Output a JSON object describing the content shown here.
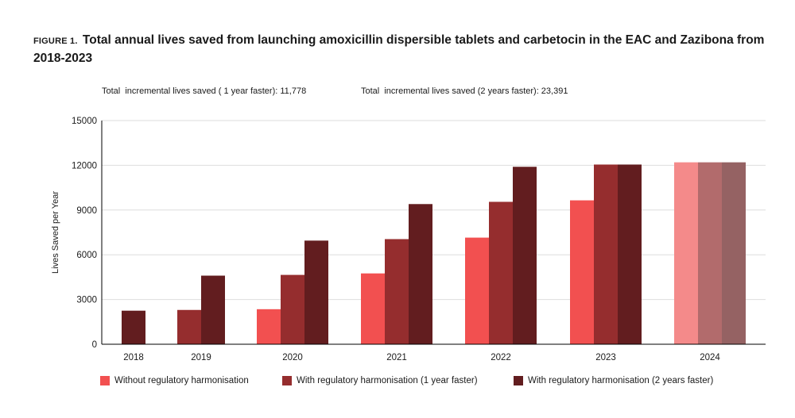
{
  "figure": {
    "prefix": "FIGURE 1.",
    "title": "Total annual lives saved from launching amoxicillin dispersible tablets and carbetocin in the EAC and Zazibona from 2018-2023"
  },
  "notes": {
    "one_year": "Total  incremental lives saved ( 1 year faster): 11,778",
    "two_years": "Total  incremental lives saved (2 years faster): 23,391"
  },
  "colors": {
    "without": "#f25050",
    "one_year": "#952d2e",
    "two_years": "#621d1f",
    "without_faded": "#f48a8a",
    "one_year_faded": "#b26b6c",
    "two_years_faded": "#956263",
    "axis": "#000000",
    "grid": "#dddddd"
  },
  "chart_data": {
    "type": "bar",
    "categories": [
      "2018",
      "2019",
      "2020",
      "2021",
      "2022",
      "2023",
      "2024"
    ],
    "series": [
      {
        "name": "Without regulatory harmonisation",
        "values": [
          null,
          null,
          2350,
          4750,
          7150,
          9650,
          12200
        ]
      },
      {
        "name": "With regulatory harmonisation (1 year faster)",
        "values": [
          null,
          2300,
          4650,
          7050,
          9550,
          12050,
          12200
        ]
      },
      {
        "name": "With regulatory harmonisation (2 years faster)",
        "values": [
          2250,
          4600,
          6950,
          9400,
          11900,
          12050,
          12200
        ]
      }
    ],
    "ylabel": "Lives Saved per Year",
    "xlabel": "",
    "ylim": [
      0,
      15000
    ],
    "yticks": [
      0,
      3000,
      6000,
      9000,
      12000,
      15000
    ],
    "grid": true,
    "legend_position": "bottom",
    "faded_categories": [
      "2024"
    ]
  }
}
